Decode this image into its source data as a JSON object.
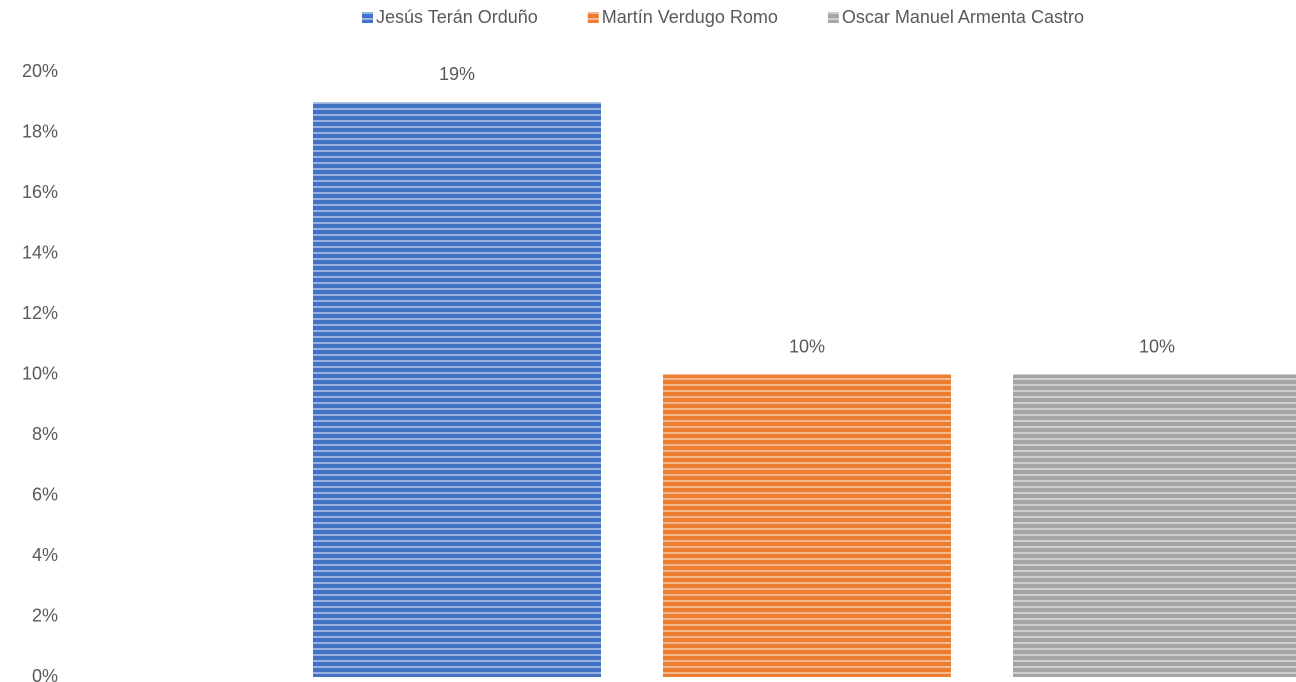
{
  "chart_data": {
    "type": "bar",
    "categories": [
      null
    ],
    "series": [
      {
        "name": "Jesús Terán Orduño",
        "color": "#4472c4",
        "values": [
          19
        ],
        "value_labels": [
          "19%"
        ]
      },
      {
        "name": "Martín Verdugo Romo",
        "color": "#ed7d31",
        "values": [
          10
        ],
        "value_labels": [
          "10%"
        ]
      },
      {
        "name": "Oscar Manuel Armenta Castro",
        "color": "#a5a5a5",
        "values": [
          10
        ],
        "value_labels": [
          "10%"
        ]
      }
    ],
    "ylim": [
      0,
      20
    ],
    "yticks": [
      {
        "value": 0,
        "label": "0%"
      },
      {
        "value": 2,
        "label": "2%"
      },
      {
        "value": 4,
        "label": "4%"
      },
      {
        "value": 6,
        "label": "6%"
      },
      {
        "value": 8,
        "label": "8%"
      },
      {
        "value": 10,
        "label": "10%"
      },
      {
        "value": 12,
        "label": "12%"
      },
      {
        "value": 14,
        "label": "14%"
      },
      {
        "value": 16,
        "label": "16%"
      },
      {
        "value": 18,
        "label": "18%"
      },
      {
        "value": 20,
        "label": "20%"
      }
    ],
    "grid": false,
    "legend": "top"
  }
}
